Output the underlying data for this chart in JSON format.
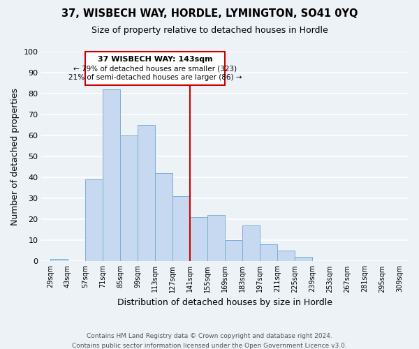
{
  "title": "37, WISBECH WAY, HORDLE, LYMINGTON, SO41 0YQ",
  "subtitle": "Size of property relative to detached houses in Hordle",
  "xlabel": "Distribution of detached houses by size in Hordle",
  "ylabel": "Number of detached properties",
  "bar_color": "#c6d9f0",
  "bar_edge_color": "#7bafd4",
  "bg_color": "#edf2f7",
  "grid_color": "white",
  "annotation_box_color": "#cc0000",
  "vline_color": "#cc0000",
  "vline_x": 141,
  "annotation_title": "37 WISBECH WAY: 143sqm",
  "annotation_line1": "← 79% of detached houses are smaller (323)",
  "annotation_line2": "21% of semi-detached houses are larger (86) →",
  "xlim": [
    22,
    316
  ],
  "ylim": [
    0,
    100
  ],
  "yticks": [
    0,
    10,
    20,
    30,
    40,
    50,
    60,
    70,
    80,
    90,
    100
  ],
  "bin_edges": [
    29,
    43,
    57,
    71,
    85,
    99,
    113,
    127,
    141,
    155,
    169,
    183,
    197,
    211,
    225,
    239,
    253,
    267,
    281,
    295,
    309
  ],
  "counts": [
    1,
    0,
    39,
    82,
    60,
    65,
    42,
    31,
    21,
    22,
    10,
    17,
    8,
    5,
    2,
    0,
    0,
    0,
    0,
    0
  ],
  "footer_line1": "Contains HM Land Registry data © Crown copyright and database right 2024.",
  "footer_line2": "Contains public sector information licensed under the Open Government Licence v3.0."
}
